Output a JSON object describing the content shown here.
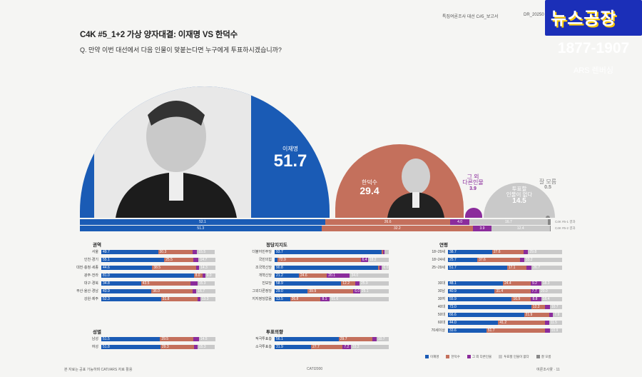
{
  "header": {
    "left_text": "특집여론조사 대선 C#5_보고서",
    "right_text": "DR_20250"
  },
  "title": "C4K #5_1+2 가상 양자대결: 이재명 VS 한덕수",
  "question": "Q. 만약 이번 대선에서 다음 인물이 맞붙는다면 누구에게 투표하시겠습니까?",
  "colors": {
    "blue": "#1a5bb5",
    "orange": "#c4705c",
    "purple": "#8b2c9c",
    "gray": "#c9c9c9",
    "darkgray": "#888888"
  },
  "bubbles": {
    "lee": {
      "name": "이재명",
      "value": "51.7"
    },
    "han": {
      "name": "한덕수",
      "value": "29.4"
    },
    "other": {
      "name": "그 외\n다른인물",
      "value": "3.9"
    },
    "none": {
      "name": "투표할\n인물이 없다",
      "value": "14.5"
    },
    "dk": {
      "name": "잘 모름",
      "value": "0.5"
    }
  },
  "bar_rows": [
    {
      "label": "C4K #5-1 결과",
      "segments": [
        {
          "v": 52.1,
          "c": "blue",
          "t": "52.1"
        },
        {
          "v": 26.6,
          "c": "orange",
          "t": "26.6"
        },
        {
          "v": 4.0,
          "c": "purple",
          "t": "4.0"
        },
        {
          "v": 16.7,
          "c": "gray",
          "t": "16.7"
        },
        {
          "v": 0.6,
          "c": "darkgray",
          "t": ""
        }
      ]
    },
    {
      "label": "C4K #5-2 결과",
      "segments": [
        {
          "v": 51.3,
          "c": "blue",
          "t": "51.3"
        },
        {
          "v": 32.2,
          "c": "orange",
          "t": "32.2"
        },
        {
          "v": 3.9,
          "c": "purple",
          "t": "3.9"
        },
        {
          "v": 12.4,
          "c": "gray",
          "t": "12.4"
        },
        {
          "v": 0.2,
          "c": "darkgray",
          "t": ""
        }
      ]
    }
  ],
  "sections": {
    "region": {
      "title": "권역",
      "rows": [
        {
          "l": "서울",
          "v": [
            49.7,
            30.3,
            4.0,
            15.5
          ]
        },
        {
          "l": "인천·경기",
          "v": [
            55.1,
            25.5,
            4.7,
            14.7
          ]
        },
        {
          "l": "대전·충청·세종",
          "v": [
            44.6,
            38.5,
            2.6,
            14.3
          ]
        },
        {
          "l": "광주·전라",
          "v": [
            81.0,
            8.0,
            2.0,
            9.0
          ]
        },
        {
          "l": "대구·경북",
          "v": [
            34.8,
            43.5,
            5.9,
            15.3
          ]
        },
        {
          "l": "부산·울산·경남",
          "v": [
            43.9,
            36.0,
            3.4,
            16.7
          ]
        },
        {
          "l": "강원·제주",
          "v": [
            52.3,
            31.8,
            2.6,
            13.3
          ]
        }
      ]
    },
    "gender": {
      "title": "성별",
      "rows": [
        {
          "l": "남성",
          "v": [
            51.5,
            29.5,
            4.6,
            14.5
          ]
        },
        {
          "l": "여성",
          "v": [
            51.8,
            29.3,
            3.2,
            15.3
          ]
        }
      ]
    },
    "party": {
      "title": "정당지지도",
      "rows": [
        {
          "l": "더불어민주당",
          "v": [
            93.7,
            1.5,
            1.2,
            3.6
          ]
        },
        {
          "l": "국민의힘",
          "v": [
            2.5,
            72.9,
            6.4,
            18.2
          ]
        },
        {
          "l": "조국혁신당",
          "v": [
            90.8,
            1.2,
            2.0,
            6.0
          ]
        },
        {
          "l": "개혁신당",
          "v": [
            21.2,
            24.6,
            20.1,
            34.0
          ]
        },
        {
          "l": "진보당",
          "v": [
            58.9,
            12.2,
            4.0,
            25.9
          ]
        },
        {
          "l": "그외다른정당",
          "v": [
            29.0,
            39.9,
            6.0,
            25.1
          ]
        },
        {
          "l": "지지정당없음",
          "v": [
            13.5,
            26.8,
            8.1,
            51.6
          ]
        }
      ]
    },
    "vote": {
      "title": "투표의향",
      "rows": [
        {
          "l": "적극투표층",
          "v": [
            56.1,
            29.7,
            3.5,
            10.7
          ]
        },
        {
          "l": "소극투표층",
          "v": [
            31.9,
            27.7,
            7.2,
            33.2
          ]
        }
      ]
    },
    "age": {
      "title": "연령",
      "rows": [
        {
          "l": "18~29세",
          "v": [
            38.7,
            27.6,
            4.0,
            29.8
          ]
        },
        {
          "l": "18~24세",
          "v": [
            25.7,
            37.6,
            3.5,
            33.2
          ]
        },
        {
          "l": "25~29세",
          "v": [
            51.7,
            17.1,
            4.5,
            26.7
          ]
        },
        {
          "l": "",
          "v": []
        },
        {
          "l": "30대",
          "v": [
            48.1,
            24.4,
            9.2,
            18.3
          ]
        },
        {
          "l": "30남",
          "v": [
            40.9,
            31.4,
            7.7,
            20.0
          ]
        },
        {
          "l": "30여",
          "v": [
            55.9,
            16.9,
            8.8,
            18.4
          ]
        },
        {
          "l": "40대",
          "v": [
            73.0,
            12.2,
            4.1,
            10.7
          ]
        },
        {
          "l": "50대",
          "v": [
            66.6,
            21.9,
            3.6,
            7.9
          ]
        },
        {
          "l": "60대",
          "v": [
            44.0,
            41.2,
            3.3,
            11.5
          ]
        },
        {
          "l": "70세이상",
          "v": [
            33.6,
            51.7,
            3.8,
            10.9
          ]
        }
      ]
    }
  },
  "legend": [
    "이재명",
    "한덕수",
    "그 외 다른인물",
    "투표할 인물이 없다",
    "잘 모름"
  ],
  "footer": {
    "left": "본 자료는 공표 가능하며 CATI/ARS 자료 활용",
    "center": "CATI2000",
    "right": "여론조사꽃 · 11"
  },
  "logo": {
    "top": "뉴스공장",
    "phone": "1877-1907",
    "sub": "ARS 렌버싱"
  }
}
